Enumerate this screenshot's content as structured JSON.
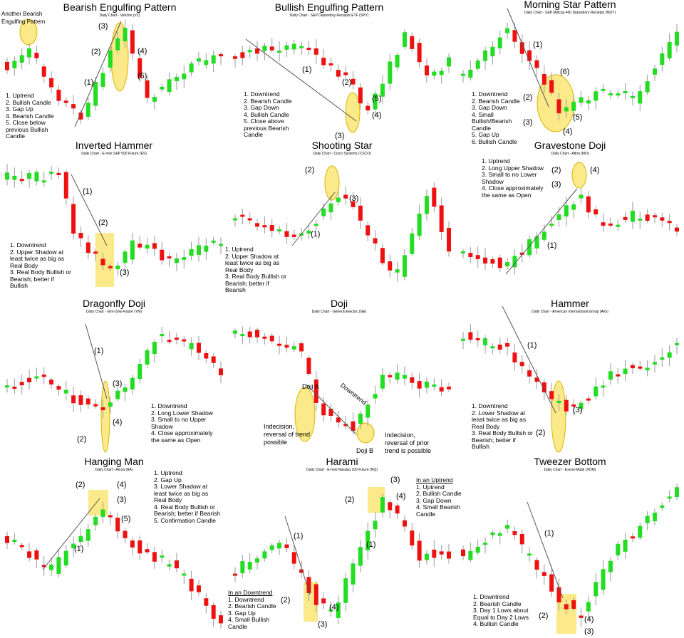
{
  "panels": [
    {
      "title": "Bearish Engulfing Pattern",
      "subtitle": "Daily Chart - Verizon (VZ)",
      "notes": [
        {
          "items": [
            "1. Uptrend",
            "2. Bullish Candle",
            "3. Gap Up",
            "4. Bearish Candle",
            "5. Close below previous Bullish Candle"
          ]
        }
      ],
      "labels": [
        "Another Bearish Engulfing Pattern",
        "(3)",
        "(2)",
        "(4)",
        "(5)",
        "(1)"
      ]
    },
    {
      "title": "Bullish Engulfing Pattern",
      "subtitle": "Daily Chart - S&P Depository Reciepts ETF (SPY)",
      "notes": [
        {
          "items": [
            "1. Downtrend",
            "2. Bearish Candle",
            "3. Gap Down",
            "4. Bullish Candle",
            "5. Close above previous Bearish Candle"
          ]
        }
      ],
      "labels": [
        "(1)",
        "(2)",
        "(5)",
        "(4)",
        "(3)"
      ]
    },
    {
      "title": "Morning Star Pattern",
      "subtitle": "Daily Chart - S&P Midcap 400 Depository Reciepts (MDY)",
      "notes": [
        {
          "items": [
            "1. Downtrend",
            "2. Bearish Candle",
            "3. Gap Down",
            "4. Small Bullish/Bearish Candle",
            "5. Gap Up",
            "6. Bullish Candle"
          ]
        }
      ],
      "labels": [
        "(1)",
        "(6)",
        "(2)",
        "(5)",
        "(3)",
        "(4)"
      ]
    },
    {
      "title": "Inverted Hammer",
      "subtitle": "Daily Chart - E-mini S&P 500 Future (ES)",
      "notes": [
        {
          "items": [
            "1. Downtrend",
            "2. Upper Shadow at least twice as big as Real Body",
            "3. Real Body Bullish or Bearish; better if Bullish"
          ]
        }
      ],
      "labels": [
        "(1)",
        "(2)",
        "(3)"
      ]
    },
    {
      "title": "Shooting Star",
      "subtitle": "Daily Chart - Cisco Systems (CSCO)",
      "notes": [
        {
          "items": [
            "1. Uptrend",
            "2. Upper Shadow at least twice as big as Real Body",
            "3. Real Body Bullish or Bearish; better if Bearish"
          ]
        }
      ],
      "labels": [
        "(2)",
        "(3)",
        "(1)"
      ]
    },
    {
      "title": "Gravestone Doji",
      "subtitle": "Daily Chart - Altria (MO)",
      "notes": [
        {
          "items": [
            "1. Uptrend",
            "2. Long Upper Shadow",
            "3. Small to no Lower Shadow",
            "4. Close approximately the same as Open"
          ]
        }
      ],
      "labels": [
        "(2)",
        "(4)",
        "(3)",
        "(1)"
      ]
    },
    {
      "title": "Dragonfly Doji",
      "subtitle": "Daily Chart - mini-Dow Future (YM)",
      "notes": [
        {
          "items": [
            "1. Downtrend",
            "2. Long Lower Shadow",
            "3. Small to no Upper Shadow",
            "4. Close approximately the same as Open"
          ]
        }
      ],
      "labels": [
        "(1)",
        "(3)",
        "(4)",
        "(2)"
      ]
    },
    {
      "title": "Doji",
      "subtitle": "Daily Chart - General Electric (GE)",
      "notes": [],
      "labels": [
        "Doji A",
        "Downtrend",
        "Indecision, reversal of trend possible",
        "Doji B",
        "Indecision, reversal of prior trend is possible"
      ]
    },
    {
      "title": "Hammer",
      "subtitle": "Daily Chart - American International Group (AIG)",
      "notes": [
        {
          "items": [
            "1. Downtrend",
            "2. Lower Shadow at least twice as big as Real Body",
            "3. Real Body Bullish or Bearish; better if Bullish"
          ]
        }
      ],
      "labels": [
        "(1)",
        "(3)",
        "(2)"
      ]
    },
    {
      "title": "Hanging Man",
      "subtitle": "Daily Chart - Alcoa (AA)",
      "notes": [
        {
          "items": [
            "1. Uptrend",
            "2. Gap Up",
            "3. Lower Shadow at least twice as big as Real Body",
            "4. Real Body Bullish or Bearish; better if Bearish",
            "5. Confirmation Candle"
          ]
        }
      ],
      "labels": [
        "(2)",
        "(4)",
        "(3)",
        "(5)",
        "(1)"
      ]
    },
    {
      "title": "Harami",
      "subtitle": "Daily Chart - E-mini Nasdaq 100 Future (NQ)",
      "notes": [
        {
          "heading": "In an Uptrend",
          "items": [
            "1. Uptrend",
            "2. Bullish Candle",
            "3. Gap Down",
            "4. Small Bearish Candle"
          ]
        },
        {
          "heading": "In an Downtrend",
          "items": [
            "1. Downtrend",
            "2. Bearish Candle",
            "3. Gap Up",
            "4. Small Bullish Candle"
          ]
        }
      ],
      "labels": [
        "(3)",
        "(2)",
        "(4)",
        "(1)",
        "(1)",
        "(2)",
        "(4)",
        "(3)"
      ]
    },
    {
      "title": "Tweezer Bottom",
      "subtitle": "Daily Chart - Exxon-Mobil (XOM)",
      "notes": [
        {
          "items": [
            "1. Downtrend",
            "2. Bearish Candle",
            "3. Day 1 Lows about Equal to Day 2 Lows",
            "4. Bullish Candle"
          ]
        }
      ],
      "labels": [
        "(1)",
        "(2)",
        "(4)",
        "(3)"
      ]
    }
  ]
}
